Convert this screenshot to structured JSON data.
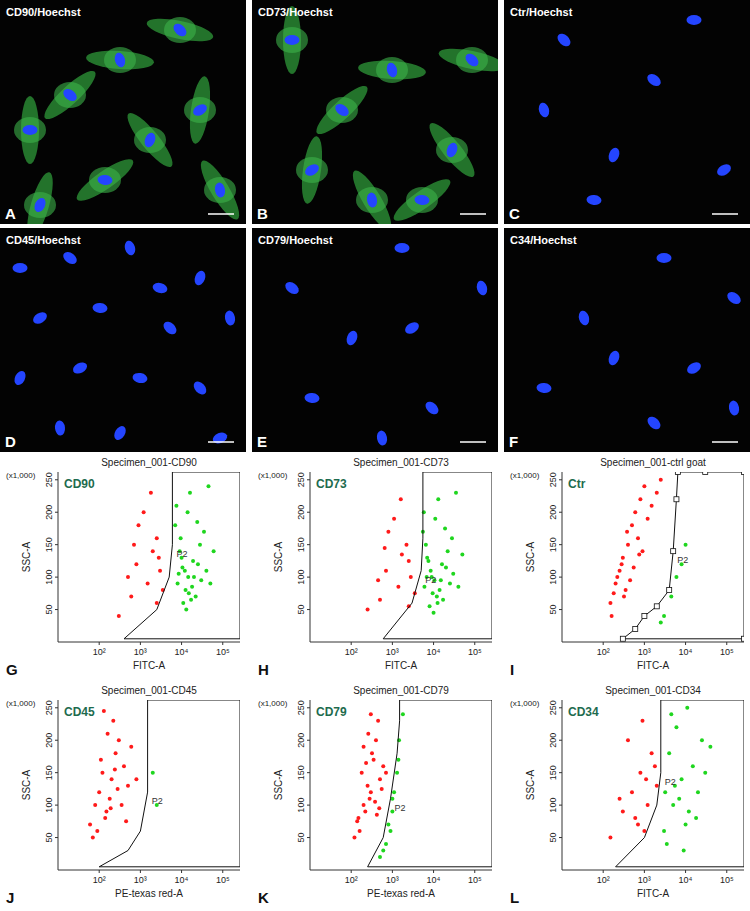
{
  "panels": [
    {
      "letter": "A",
      "label": "CD90/Hoechst",
      "positive": true
    },
    {
      "letter": "B",
      "label": "CD73/Hoechst",
      "positive": true
    },
    {
      "letter": "C",
      "label": "Ctr/Hoechst",
      "positive": false
    },
    {
      "letter": "D",
      "label": "CD45/Hoechst",
      "positive": false
    },
    {
      "letter": "E",
      "label": "CD79/Hoechst",
      "positive": false
    },
    {
      "letter": "F",
      "label": "C34/Hoechst",
      "positive": false
    }
  ],
  "chart_data": [
    {
      "type": "scatter",
      "panel": "G",
      "title": "Specimen_001-CD90",
      "label": "CD90",
      "x_label": "FITC-A",
      "y_label": "SSC-A",
      "y_unit": "(x1,000)",
      "log": "x",
      "xlim": [
        10,
        262144
      ],
      "ylim": [
        0,
        262
      ],
      "xticks": [
        {
          "value": 100,
          "label": "10²"
        },
        {
          "value": 1000,
          "label": "10³"
        },
        {
          "value": 10000,
          "label": "10⁴"
        },
        {
          "value": 100000,
          "label": "10⁵"
        }
      ],
      "yticks": [
        50,
        100,
        150,
        200,
        250
      ],
      "gate": {
        "label": "P2",
        "x": [
          400,
          2500,
          5000,
          6000,
          6000,
          262144,
          262144
        ],
        "y": [
          5,
          50,
          100,
          150,
          262,
          262,
          5
        ]
      },
      "series": [
        {
          "color": "#ff1a1a",
          "x": [
            300,
            800,
            1500,
            2500,
            600,
            1200,
            3000,
            3500,
            2000,
            900,
            500,
            2500,
            1800,
            700,
            2800
          ],
          "values": [
            40,
            120,
            90,
            160,
            70,
            200,
            110,
            80,
            140,
            180,
            100,
            60,
            230,
            150,
            130
          ]
        },
        {
          "color": "#1fd61f",
          "x": [
            8000,
            12000,
            15000,
            9000,
            20000,
            25000,
            11000,
            7000,
            30000,
            14000,
            18000,
            10000,
            40000,
            22000,
            9500,
            13000,
            16000,
            28000,
            50000,
            8500,
            12500,
            19000,
            35000,
            10500,
            60000,
            7500,
            17000,
            24000,
            14500,
            45000
          ],
          "values": [
            90,
            110,
            75,
            140,
            100,
            120,
            60,
            180,
            95,
            200,
            85,
            130,
            110,
            70,
            160,
            50,
            230,
            150,
            90,
            105,
            80,
            125,
            170,
            115,
            140,
            210,
            65,
            185,
            100,
            240
          ]
        }
      ]
    },
    {
      "type": "scatter",
      "panel": "H",
      "title": "Specimen_001-CD73",
      "label": "CD73",
      "x_label": "FITC-A",
      "y_label": "SSC-A",
      "y_unit": "(x1,000)",
      "log": "x",
      "xlim": [
        10,
        262144
      ],
      "ylim": [
        0,
        262
      ],
      "xticks": [
        {
          "value": 100,
          "label": "10²"
        },
        {
          "value": 1000,
          "label": "10³"
        },
        {
          "value": 10000,
          "label": "10⁴"
        },
        {
          "value": 100000,
          "label": "10⁵"
        }
      ],
      "yticks": [
        50,
        100,
        150,
        200,
        250
      ],
      "gate": {
        "label": "P2",
        "x": [
          600,
          3000,
          5000,
          5500,
          5500,
          262144,
          262144
        ],
        "y": [
          5,
          60,
          110,
          160,
          262,
          262,
          5
        ]
      },
      "series": [
        {
          "color": "#ff1a1a",
          "x": [
            250,
            700,
            1400,
            2200,
            500,
            1100,
            2800,
            3500,
            1700,
            800,
            450,
            2500,
            1600,
            650,
            2500
          ],
          "values": [
            50,
            110,
            85,
            150,
            65,
            190,
            100,
            75,
            135,
            170,
            95,
            55,
            220,
            145,
            125
          ]
        },
        {
          "color": "#1fd61f",
          "x": [
            6000,
            9000,
            12000,
            7000,
            15000,
            20000,
            8000,
            5500,
            25000,
            11000,
            14000,
            7500,
            30000,
            17000,
            6500,
            10000,
            13000,
            22000,
            40000,
            6800,
            9500,
            16000,
            28000,
            8500,
            50000,
            5800,
            12500,
            19000,
            10500,
            35000
          ],
          "values": [
            85,
            100,
            70,
            130,
            95,
            115,
            55,
            170,
            90,
            190,
            80,
            125,
            105,
            65,
            150,
            45,
            220,
            140,
            85,
            100,
            75,
            120,
            160,
            110,
            135,
            200,
            60,
            175,
            95,
            230
          ]
        }
      ]
    },
    {
      "type": "scatter",
      "panel": "I",
      "title": "Specimen_001-ctrl goat",
      "label": "Ctr",
      "x_label": "FITC-A",
      "y_label": "SSC-A",
      "y_unit": "(x1,000)",
      "log": "x",
      "xlim": [
        10,
        262144
      ],
      "ylim": [
        0,
        262
      ],
      "xticks": [
        {
          "value": 100,
          "label": "10²"
        },
        {
          "value": 1000,
          "label": "10³"
        },
        {
          "value": 10000,
          "label": "10⁴"
        },
        {
          "value": 100000,
          "label": "10⁵"
        }
      ],
      "yticks": [
        50,
        100,
        150,
        200,
        250
      ],
      "gate": {
        "label": "P2",
        "marker": "square",
        "x": [
          300,
          600,
          1000,
          2000,
          4000,
          5000,
          6000,
          6500,
          30000,
          262144,
          262144
        ],
        "y": [
          5,
          20,
          40,
          55,
          80,
          140,
          220,
          262,
          262,
          262,
          5
        ]
      },
      "series": [
        {
          "color": "#ff1a1a",
          "x": [
            150,
            200,
            250,
            180,
            300,
            400,
            220,
            350,
            500,
            280,
            600,
            450,
            800,
            700,
            1000,
            900,
            1500,
            1200,
            2000,
            2500,
            160,
            320,
            550,
            750,
            380
          ],
          "values": [
            60,
            90,
            110,
            75,
            130,
            150,
            100,
            80,
            180,
            120,
            200,
            95,
            220,
            160,
            240,
            140,
            210,
            190,
            230,
            250,
            40,
            70,
            115,
            135,
            170
          ]
        },
        {
          "color": "#1fd61f",
          "x": [
            3000,
            4500,
            8000,
            2500,
            6000,
            10000
          ],
          "values": [
            40,
            70,
            120,
            30,
            100,
            150
          ]
        }
      ]
    },
    {
      "type": "scatter",
      "panel": "J",
      "title": "Specimen_001-CD45",
      "label": "CD45",
      "x_label": "PE-texas red-A",
      "y_label": "SSC-A",
      "y_unit": "(x1,000)",
      "log": "x",
      "xlim": [
        10,
        262144
      ],
      "ylim": [
        0,
        262
      ],
      "xticks": [
        {
          "value": 100,
          "label": "10²"
        },
        {
          "value": 1000,
          "label": "10³"
        },
        {
          "value": 10000,
          "label": "10⁴"
        },
        {
          "value": 100000,
          "label": "10⁵"
        }
      ],
      "yticks": [
        50,
        100,
        150,
        200,
        250
      ],
      "gate": {
        "label": "P2",
        "x": [
          100,
          500,
          1000,
          1500,
          1500,
          262144,
          262144
        ],
        "y": [
          5,
          30,
          60,
          120,
          262,
          262,
          5
        ]
      },
      "series": [
        {
          "color": "#ff1a1a",
          "x": [
            60,
            80,
            100,
            150,
            120,
            200,
            250,
            90,
            300,
            180,
            400,
            140,
            500,
            220,
            350,
            110,
            70,
            600,
            280,
            160,
            450,
            130,
            800,
            190,
            240
          ],
          "values": [
            70,
            100,
            120,
            90,
            150,
            140,
            180,
            60,
            200,
            110,
            160,
            80,
            130,
            230,
            100,
            170,
            50,
            190,
            125,
            210,
            75,
            245,
            140,
            95,
            155
          ]
        },
        {
          "color": "#1fd61f",
          "x": [
            2000,
            2500
          ],
          "values": [
            150,
            100
          ]
        }
      ]
    },
    {
      "type": "scatter",
      "panel": "K",
      "title": "Specimen_001-CD79",
      "label": "CD79",
      "x_label": "PE-texas red-A",
      "y_label": "SSC-A",
      "y_unit": "(x1,000)",
      "log": "x",
      "xlim": [
        10,
        262144
      ],
      "ylim": [
        0,
        262
      ],
      "xticks": [
        {
          "value": 100,
          "label": "10²"
        },
        {
          "value": 1000,
          "label": "10³"
        },
        {
          "value": 10000,
          "label": "10⁴"
        },
        {
          "value": 100000,
          "label": "10⁵"
        }
      ],
      "yticks": [
        50,
        100,
        150,
        200,
        250
      ],
      "gate": {
        "label": "P2",
        "x": [
          250,
          600,
          900,
          1300,
          1500,
          1500,
          262144,
          262144
        ],
        "y": [
          5,
          50,
          110,
          180,
          230,
          262,
          262,
          5
        ]
      },
      "series": [
        {
          "color": "#ff1a1a",
          "x": [
            120,
            150,
            200,
            250,
            180,
            300,
            350,
            220,
            400,
            280,
            500,
            160,
            450,
            320,
            600,
            140,
            380,
            260,
            550,
            200,
            420,
            700,
            300,
            480,
            230
          ],
          "values": [
            50,
            80,
            100,
            130,
            150,
            120,
            170,
            90,
            200,
            110,
            140,
            60,
            230,
            180,
            160,
            75,
            105,
            210,
            125,
            190,
            85,
            150,
            240,
            95,
            165
          ]
        },
        {
          "color": "#1fd61f",
          "x": [
            500,
            700,
            800,
            1000,
            1100,
            900,
            1300,
            1400,
            600,
            1450,
            1000,
            1800
          ],
          "values": [
            20,
            40,
            70,
            90,
            120,
            60,
            150,
            170,
            30,
            200,
            110,
            240
          ]
        }
      ]
    },
    {
      "type": "scatter",
      "panel": "L",
      "title": "Specimen_001-CD34",
      "label": "CD34",
      "x_label": "FITC-A",
      "y_label": "SSC-A",
      "y_unit": "(x1,000)",
      "log": "x",
      "xlim": [
        10,
        262144
      ],
      "ylim": [
        0,
        262
      ],
      "xticks": [
        {
          "value": 100,
          "label": "10²"
        },
        {
          "value": 1000,
          "label": "10³"
        },
        {
          "value": 10000,
          "label": "10⁴"
        },
        {
          "value": 100000,
          "label": "10⁵"
        }
      ],
      "yticks": [
        50,
        100,
        150,
        200,
        250
      ],
      "gate": {
        "label": "P2",
        "x": [
          200,
          1000,
          2000,
          2500,
          2500,
          262144,
          262144
        ],
        "y": [
          5,
          50,
          100,
          150,
          262,
          262,
          5
        ]
      },
      "series": [
        {
          "color": "#ff1a1a",
          "x": [
            150,
            300,
            500,
            800,
            1200,
            400,
            1000,
            1500,
            2000,
            600,
            250,
            900,
            1800,
            700,
            1100
          ],
          "values": [
            50,
            90,
            120,
            150,
            100,
            200,
            60,
            180,
            130,
            80,
            110,
            230,
            160,
            70,
            140
          ]
        },
        {
          "color": "#1fd61f",
          "x": [
            3000,
            5000,
            8000,
            4000,
            12000,
            20000,
            6000,
            3500,
            15000,
            10000,
            25000,
            7000,
            4500,
            30000,
            9000,
            5500,
            18000,
            40000,
            3200,
            11000
          ],
          "values": [
            60,
            100,
            140,
            180,
            90,
            120,
            220,
            40,
            160,
            70,
            200,
            110,
            240,
            150,
            30,
            130,
            80,
            190,
            120,
            250
          ]
        }
      ]
    }
  ]
}
